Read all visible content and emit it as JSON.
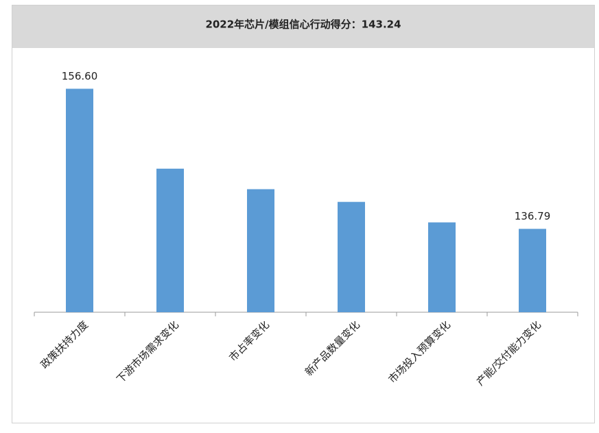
{
  "chart_data": {
    "type": "bar",
    "title": "2022年芯片/模组信心行动得分：143.24",
    "categories": [
      "政策扶持力度",
      "下游市场需求变化",
      "市占率变化",
      "新产品数量变化",
      "市场投入预算变化",
      "产能/交付能力变化"
    ],
    "values": [
      156.6,
      145.3,
      142.4,
      140.6,
      137.7,
      136.79
    ],
    "value_labels": [
      "156.60",
      null,
      null,
      null,
      null,
      "136.79"
    ],
    "color": "#5b9bd5",
    "ylim": [
      125,
      161
    ]
  }
}
